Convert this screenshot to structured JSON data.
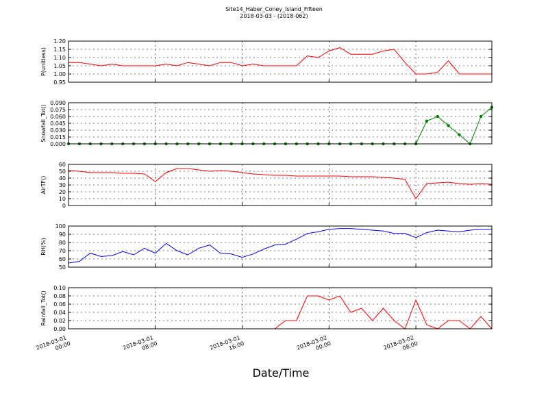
{
  "chart_data": {
    "type": "line",
    "title": "Site14_Haber_Coney_Island_Fifteen",
    "subtitle": "2018-03-03 - (2018-062)",
    "xlabel": "Date/Time",
    "grid": true,
    "x": [
      "2018-03-01 00:00",
      "2018-03-01 01:00",
      "2018-03-01 02:00",
      "2018-03-01 03:00",
      "2018-03-01 04:00",
      "2018-03-01 05:00",
      "2018-03-01 06:00",
      "2018-03-01 07:00",
      "2018-03-01 08:00",
      "2018-03-01 09:00",
      "2018-03-01 10:00",
      "2018-03-01 11:00",
      "2018-03-01 12:00",
      "2018-03-01 13:00",
      "2018-03-01 14:00",
      "2018-03-01 15:00",
      "2018-03-01 16:00",
      "2018-03-01 17:00",
      "2018-03-01 18:00",
      "2018-03-01 19:00",
      "2018-03-01 20:00",
      "2018-03-01 21:00",
      "2018-03-01 22:00",
      "2018-03-01 23:00",
      "2018-03-02 00:00",
      "2018-03-02 01:00",
      "2018-03-02 02:00",
      "2018-03-02 03:00",
      "2018-03-02 04:00",
      "2018-03-02 05:00",
      "2018-03-02 06:00",
      "2018-03-02 07:00",
      "2018-03-02 08:00",
      "2018-03-02 09:00",
      "2018-03-02 10:00",
      "2018-03-02 11:00",
      "2018-03-02 12:00",
      "2018-03-02 13:00",
      "2018-03-02 14:00",
      "2018-03-02 15:00"
    ],
    "xlim": [
      "2018-03-01 00:00",
      "2018-03-02 15:00"
    ],
    "xticks": [
      "2018-03-01 00:00",
      "2018-03-01 08:00",
      "2018-03-01 16:00",
      "2018-03-02 00:00",
      "2018-03-02 08:00"
    ],
    "panels": [
      {
        "ylabel": "P(unitless)",
        "ylim": [
          0.95,
          1.2
        ],
        "yticks": [
          {
            "value": 0.95,
            "label": "0.95"
          },
          {
            "value": 1.0,
            "label": "1.00"
          },
          {
            "value": 1.05,
            "label": "1.05"
          },
          {
            "value": 1.1,
            "label": "1.10"
          },
          {
            "value": 1.15,
            "label": "1.15"
          },
          {
            "value": 1.2,
            "label": "1.20"
          }
        ],
        "series": [
          {
            "color": "#ff0000",
            "values": [
              1.07,
              1.07,
              1.06,
              1.05,
              1.06,
              1.05,
              1.05,
              1.05,
              1.05,
              1.06,
              1.05,
              1.07,
              1.06,
              1.05,
              1.07,
              1.07,
              1.05,
              1.06,
              1.05,
              1.05,
              1.05,
              1.05,
              1.11,
              1.1,
              1.14,
              1.16,
              1.12,
              1.12,
              1.12,
              1.14,
              1.15,
              1.07,
              1.0,
              1.0,
              1.01,
              1.08,
              1.0,
              1.0,
              1.0,
              1.0
            ]
          }
        ]
      },
      {
        "ylabel": "Snowfall_Tot()",
        "ylim": [
          0,
          0.09
        ],
        "yticks": [
          {
            "value": 0,
            "label": "0.000"
          },
          {
            "value": 0.015,
            "label": "0.015"
          },
          {
            "value": 0.03,
            "label": "0.030"
          },
          {
            "value": 0.045,
            "label": "0.045"
          },
          {
            "value": 0.06,
            "label": "0.060"
          },
          {
            "value": 0.075,
            "label": "0.075"
          },
          {
            "value": 0.09,
            "label": "0.090"
          }
        ],
        "series": [
          {
            "color": "#007f00",
            "marker": true,
            "values": [
              0,
              0,
              0,
              0,
              0,
              0,
              0,
              0,
              0,
              0,
              0,
              0,
              0,
              0,
              0,
              0,
              0,
              0,
              0,
              0,
              0,
              0,
              0,
              0,
              0,
              0,
              0,
              0,
              0,
              0,
              0,
              0,
              0,
              0.05,
              0.06,
              0.04,
              0.02,
              0.0,
              0.06,
              0.08
            ]
          }
        ]
      },
      {
        "ylabel": "AirTF()",
        "ylim": [
          0,
          60
        ],
        "yticks": [
          0,
          10,
          20,
          30,
          40,
          50,
          60
        ],
        "series": [
          {
            "color": "#ff0000",
            "values": [
              51,
              50,
              48,
              48,
              48,
              47,
              47,
              46,
              35,
              48,
              54,
              54,
              52,
              50,
              51,
              50,
              48,
              46,
              45,
              44,
              44,
              43,
              43,
              43,
              43,
              43,
              42,
              42,
              42,
              41,
              40,
              38,
              10,
              32,
              33,
              34,
              32,
              31,
              32,
              31
            ]
          }
        ]
      },
      {
        "ylabel": "RH(%)",
        "ylim": [
          50,
          100
        ],
        "yticks": [
          50,
          60,
          70,
          80,
          90,
          100
        ],
        "series": [
          {
            "color": "#0000ff",
            "values": [
              55,
              57,
              67,
              63,
              64,
              69,
              65,
              73,
              67,
              79,
              70,
              65,
              73,
              77,
              67,
              66,
              62,
              66,
              72,
              77,
              78,
              84,
              91,
              93,
              96,
              97,
              97,
              96,
              95,
              94,
              91,
              91,
              86,
              92,
              95,
              94,
              93,
              95,
              96,
              96
            ]
          }
        ]
      },
      {
        "ylabel": "Rainfall_Tot()",
        "ylim": [
          0,
          0.1
        ],
        "yticks": [
          {
            "value": 0,
            "label": "0.00"
          },
          {
            "value": 0.02,
            "label": "0.02"
          },
          {
            "value": 0.04,
            "label": "0.04"
          },
          {
            "value": 0.06,
            "label": "0.06"
          },
          {
            "value": 0.08,
            "label": "0.08"
          },
          {
            "value": 0.1,
            "label": "0.10"
          }
        ],
        "series": [
          {
            "color": "#ff0000",
            "values": [
              0,
              0,
              0,
              0,
              0,
              0,
              0,
              0,
              0,
              0,
              0,
              0,
              0,
              0,
              0,
              0,
              0,
              0,
              0,
              0,
              0.02,
              0.02,
              0.08,
              0.08,
              0.07,
              0.08,
              0.04,
              0.05,
              0.02,
              0.05,
              0.02,
              0.0,
              0.07,
              0.01,
              0.0,
              0.02,
              0.02,
              0.0,
              0.03,
              0.0
            ]
          }
        ]
      }
    ]
  }
}
